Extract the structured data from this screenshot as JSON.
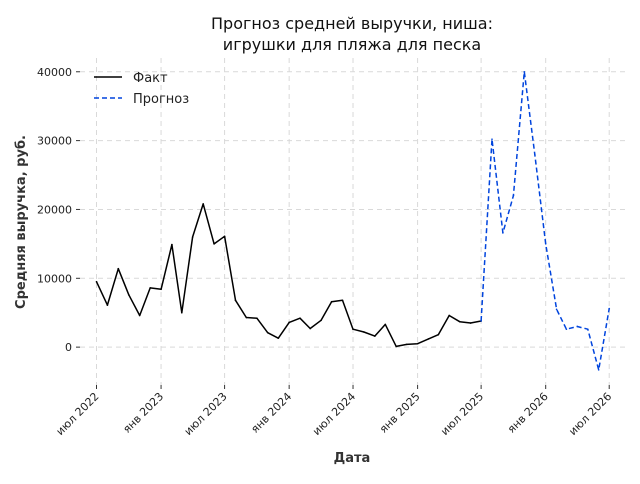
{
  "chart_data": {
    "type": "line",
    "title_lines": [
      "Прогноз средней выручки, ниша:",
      "игрушки для пляжа для песка"
    ],
    "xlabel": "Дата",
    "ylabel": "Средняя выручка, руб.",
    "x_tick_labels": [
      {
        "date": "2022-07-01",
        "label": "июл 2022"
      },
      {
        "date": "2023-01-01",
        "label": "янв 2023"
      },
      {
        "date": "2023-07-01",
        "label": "июл 2023"
      },
      {
        "date": "2024-01-01",
        "label": "янв 2024"
      },
      {
        "date": "2024-07-01",
        "label": "июл 2024"
      },
      {
        "date": "2025-01-01",
        "label": "янв 2025"
      },
      {
        "date": "2025-07-01",
        "label": "июл 2025"
      },
      {
        "date": "2026-01-01",
        "label": "янв 2026"
      },
      {
        "date": "2026-07-01",
        "label": "июл 2026"
      }
    ],
    "y_ticks": [
      0,
      10000,
      20000,
      30000,
      40000
    ],
    "ylim": [
      -5500,
      42000
    ],
    "xlim": [
      "2022-05-15",
      "2026-08-15"
    ],
    "grid": true,
    "legend_position": "top-left",
    "series": [
      {
        "name": "Факт",
        "color": "#000000",
        "style": "solid",
        "points": [
          {
            "x": "2022-07-01",
            "y": 9500
          },
          {
            "x": "2022-08-01",
            "y": 6100
          },
          {
            "x": "2022-09-01",
            "y": 11400
          },
          {
            "x": "2022-10-01",
            "y": 7600
          },
          {
            "x": "2022-11-01",
            "y": 4600
          },
          {
            "x": "2022-12-01",
            "y": 8600
          },
          {
            "x": "2023-01-01",
            "y": 8400
          },
          {
            "x": "2023-02-01",
            "y": 14900
          },
          {
            "x": "2023-03-01",
            "y": 5000
          },
          {
            "x": "2023-04-01",
            "y": 16000
          },
          {
            "x": "2023-05-01",
            "y": 20800
          },
          {
            "x": "2023-06-01",
            "y": 15000
          },
          {
            "x": "2023-07-01",
            "y": 16100
          },
          {
            "x": "2023-08-01",
            "y": 6800
          },
          {
            "x": "2023-09-01",
            "y": 4300
          },
          {
            "x": "2023-10-01",
            "y": 4200
          },
          {
            "x": "2023-11-01",
            "y": 2100
          },
          {
            "x": "2023-12-01",
            "y": 1300
          },
          {
            "x": "2024-01-01",
            "y": 3600
          },
          {
            "x": "2024-02-01",
            "y": 4200
          },
          {
            "x": "2024-03-01",
            "y": 2700
          },
          {
            "x": "2024-04-01",
            "y": 3900
          },
          {
            "x": "2024-05-01",
            "y": 6600
          },
          {
            "x": "2024-06-01",
            "y": 6800
          },
          {
            "x": "2024-07-01",
            "y": 2600
          },
          {
            "x": "2024-08-01",
            "y": 2200
          },
          {
            "x": "2024-09-01",
            "y": 1600
          },
          {
            "x": "2024-10-01",
            "y": 3300
          },
          {
            "x": "2024-11-01",
            "y": 100
          },
          {
            "x": "2024-12-01",
            "y": 400
          },
          {
            "x": "2025-01-01",
            "y": 500
          },
          {
            "x": "2025-02-01",
            "y": 1200
          },
          {
            "x": "2025-03-01",
            "y": 1800
          },
          {
            "x": "2025-04-01",
            "y": 4600
          },
          {
            "x": "2025-05-01",
            "y": 3700
          },
          {
            "x": "2025-06-01",
            "y": 3500
          },
          {
            "x": "2025-07-01",
            "y": 3800
          }
        ]
      },
      {
        "name": "Прогноз",
        "color": "#0044dd",
        "style": "dashed",
        "points": [
          {
            "x": "2025-07-01",
            "y": 3800
          },
          {
            "x": "2025-08-01",
            "y": 30200
          },
          {
            "x": "2025-09-01",
            "y": 16600
          },
          {
            "x": "2025-10-01",
            "y": 22000
          },
          {
            "x": "2025-11-01",
            "y": 40000
          },
          {
            "x": "2025-12-01",
            "y": 28000
          },
          {
            "x": "2026-01-01",
            "y": 15000
          },
          {
            "x": "2026-02-01",
            "y": 5500
          },
          {
            "x": "2026-03-01",
            "y": 2600
          },
          {
            "x": "2026-04-01",
            "y": 3000
          },
          {
            "x": "2026-05-01",
            "y": 2600
          },
          {
            "x": "2026-06-01",
            "y": -3300
          },
          {
            "x": "2026-07-01",
            "y": 5600
          }
        ]
      }
    ]
  }
}
